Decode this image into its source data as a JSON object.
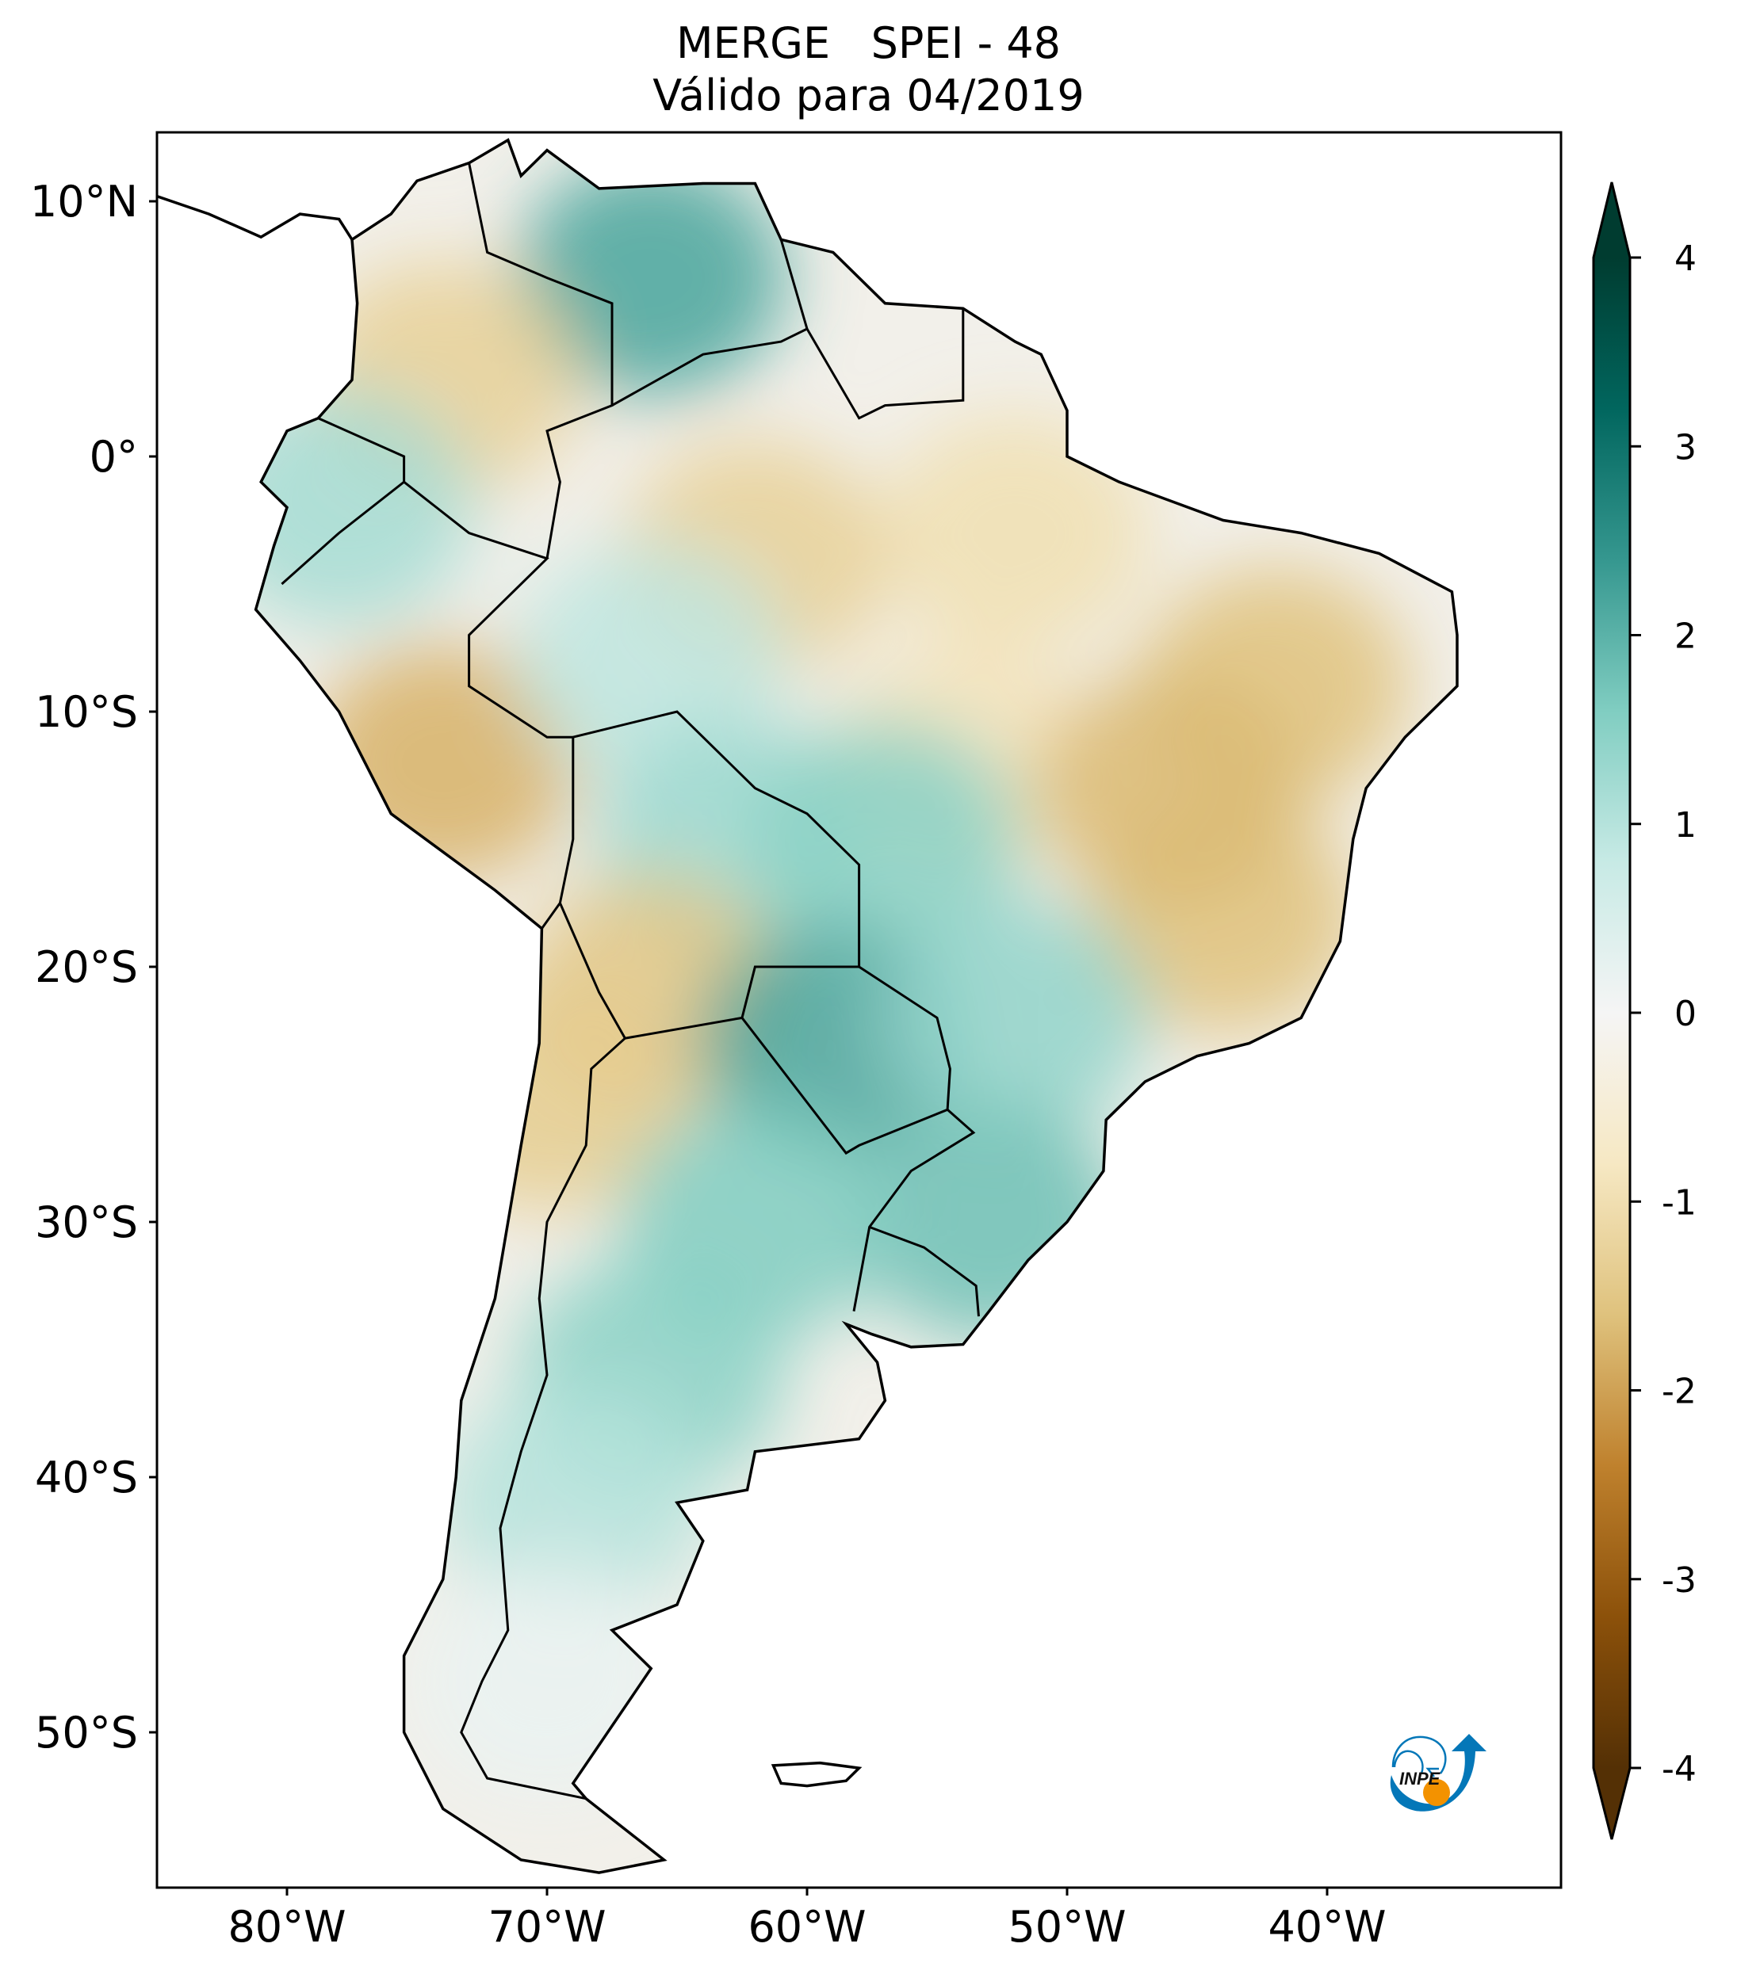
{
  "chart_data": {
    "type": "heatmap",
    "title": "MERGE   SPEI - 48",
    "subtitle": "Válido para 04/2019",
    "xlabel": "",
    "ylabel": "",
    "xlim": [
      -85,
      -31
    ],
    "ylim": [
      -56,
      12.7
    ],
    "x_ticks": [
      {
        "value": -80,
        "label": "80°W"
      },
      {
        "value": -70,
        "label": "70°W"
      },
      {
        "value": -60,
        "label": "60°W"
      },
      {
        "value": -50,
        "label": "50°W"
      },
      {
        "value": -40,
        "label": "40°W"
      }
    ],
    "y_ticks": [
      {
        "value": 10,
        "label": "10°N"
      },
      {
        "value": 0,
        "label": "0°"
      },
      {
        "value": -10,
        "label": "10°S"
      },
      {
        "value": -20,
        "label": "20°S"
      },
      {
        "value": -30,
        "label": "30°S"
      },
      {
        "value": -40,
        "label": "40°S"
      },
      {
        "value": -50,
        "label": "50°S"
      }
    ],
    "grid": false,
    "colormap": "BrBG",
    "colorbar": {
      "range": [
        -4,
        4
      ],
      "extend": "both",
      "ticks": [
        {
          "value": 4,
          "label": "4"
        },
        {
          "value": 3,
          "label": "3"
        },
        {
          "value": 2,
          "label": "2"
        },
        {
          "value": 1,
          "label": "1"
        },
        {
          "value": 0,
          "label": "0"
        },
        {
          "value": -1,
          "label": "-1"
        },
        {
          "value": -2,
          "label": "-2"
        },
        {
          "value": -3,
          "label": "-3"
        },
        {
          "value": -4,
          "label": "-4"
        }
      ],
      "colors": [
        "#543005",
        "#8c510a",
        "#bf812d",
        "#dfc27d",
        "#f6e8c3",
        "#f5f5f5",
        "#c7eae5",
        "#80cdc1",
        "#35978f",
        "#01665e",
        "#003c30"
      ]
    },
    "anomaly_regions": [
      {
        "lon": -66,
        "lat": 7,
        "value": 2.2
      },
      {
        "lon": -74,
        "lat": 3,
        "value": -1.3
      },
      {
        "lon": -78,
        "lat": -2,
        "value": 1.2
      },
      {
        "lon": -74,
        "lat": -12,
        "value": -1.8
      },
      {
        "lon": -62,
        "lat": -4,
        "value": -1.3
      },
      {
        "lon": -66,
        "lat": -8,
        "value": 0.9
      },
      {
        "lon": -63,
        "lat": -15,
        "value": 1.3
      },
      {
        "lon": -54,
        "lat": -12,
        "value": -0.9
      },
      {
        "lon": -57,
        "lat": -15,
        "value": 1.5
      },
      {
        "lon": -52,
        "lat": -3,
        "value": -1.0
      },
      {
        "lon": -42,
        "lat": -9,
        "value": -1.6
      },
      {
        "lon": -44,
        "lat": -18,
        "value": -1.6
      },
      {
        "lon": -46,
        "lat": -13,
        "value": -1.7
      },
      {
        "lon": -66,
        "lat": -21,
        "value": -1.5
      },
      {
        "lon": -70,
        "lat": -25,
        "value": -1.4
      },
      {
        "lon": -59,
        "lat": -23,
        "value": 2.2
      },
      {
        "lon": -52,
        "lat": -22,
        "value": 1.4
      },
      {
        "lon": -53,
        "lat": -30,
        "value": 1.8
      },
      {
        "lon": -62,
        "lat": -30,
        "value": 1.6
      },
      {
        "lon": -66,
        "lat": -36,
        "value": 1.5
      },
      {
        "lon": -69,
        "lat": -41,
        "value": 1.0
      },
      {
        "lon": -70,
        "lat": -48,
        "value": 0.2
      }
    ],
    "logo_text": "INPE"
  }
}
